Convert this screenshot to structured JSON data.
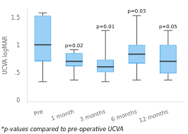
{
  "chart_data": {
    "type": "box",
    "ylabel": "UCVA logMAR",
    "footnote": "*p-values compared to pre-operative UCVA",
    "categories": [
      "Pre",
      "1 month",
      "3 months",
      "6 months",
      "12 months"
    ],
    "boxes": [
      {
        "q1": 0.72,
        "median": 1.02,
        "q3": 1.55,
        "whislo": 0.35,
        "whishi": 1.6
      },
      {
        "q1": 0.63,
        "median": 0.72,
        "q3": 0.87,
        "whislo": 0.38,
        "whishi": 0.93
      },
      {
        "q1": 0.52,
        "median": 0.62,
        "q3": 0.75,
        "whislo": 0.35,
        "whishi": 1.28
      },
      {
        "q1": 0.68,
        "median": 0.85,
        "q3": 1.02,
        "whislo": 0.38,
        "whishi": 1.55
      },
      {
        "q1": 0.5,
        "median": 0.72,
        "q3": 1.02,
        "whislo": 0.38,
        "whishi": 1.28
      }
    ],
    "annotations": [
      {
        "category": "1 month",
        "text": "p=0.02"
      },
      {
        "category": "3 months",
        "text": "p=0.01"
      },
      {
        "category": "6 months",
        "text": "p=0.03"
      },
      {
        "category": "12 months",
        "text": "p=0.05"
      }
    ],
    "ylim": [
      -0.02,
      1.68
    ],
    "yticks": [
      0,
      {
        "value": 0.5,
        "label": ".5"
      },
      1,
      1.5
    ],
    "grid": false
  }
}
